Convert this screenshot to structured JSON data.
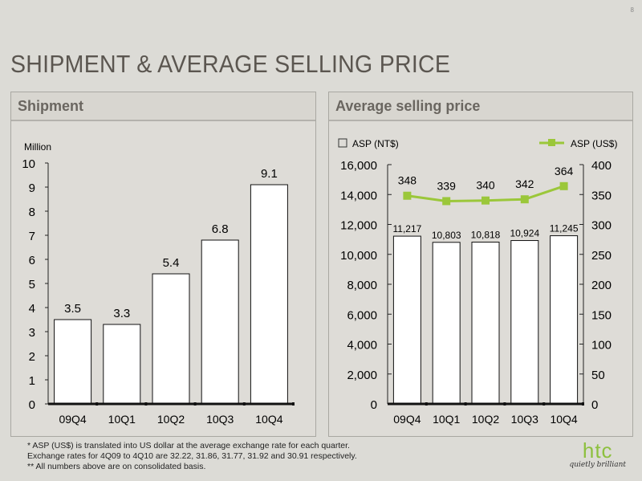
{
  "page_number": "8",
  "title": "SHIPMENT & AVERAGE SELLING PRICE",
  "colors": {
    "line": "#9bc73a",
    "bar_fill": "#ffffff",
    "bar_stroke": "#111111"
  },
  "chart_data": [
    {
      "type": "bar",
      "panel_title": "Shipment",
      "ylabel": "Million",
      "categories": [
        "09Q4",
        "10Q1",
        "10Q2",
        "10Q3",
        "10Q4"
      ],
      "values": [
        3.5,
        3.3,
        5.4,
        6.8,
        9.1
      ],
      "labels": [
        "3.5",
        "3.3",
        "5.4",
        "6.8",
        "9.1"
      ],
      "ylim": [
        0,
        10
      ],
      "yticks": [
        "0",
        "1",
        "2",
        "3",
        "4",
        "5",
        "6",
        "7",
        "8",
        "9",
        "10"
      ],
      "grid": false
    },
    {
      "type": "bar+line",
      "panel_title": "Average selling price",
      "categories": [
        "09Q4",
        "10Q1",
        "10Q2",
        "10Q3",
        "10Q4"
      ],
      "series": [
        {
          "name": "ASP (NT$)",
          "type": "bar",
          "axis": "left",
          "values": [
            11217,
            10803,
            10818,
            10924,
            11245
          ],
          "labels": [
            "11,217",
            "10,803",
            "10,818",
            "10,924",
            "11,245"
          ]
        },
        {
          "name": "ASP (US$)",
          "type": "line",
          "axis": "right",
          "values": [
            348,
            339,
            340,
            342,
            364
          ],
          "labels": [
            "348",
            "339",
            "340",
            "342",
            "364"
          ]
        }
      ],
      "ylim_left": [
        0,
        16000
      ],
      "yticks_left": [
        "0",
        "2,000",
        "4,000",
        "6,000",
        "8,000",
        "10,000",
        "12,000",
        "14,000",
        "16,000"
      ],
      "ylim_right": [
        0,
        400
      ],
      "yticks_right": [
        "0",
        "50",
        "100",
        "150",
        "200",
        "250",
        "300",
        "350",
        "400"
      ],
      "legend": "top",
      "grid": false
    }
  ],
  "notes": [
    "*  ASP (US$) is translated into US dollar at the average exchange rate for each quarter.",
    "    Exchange rates for 4Q09 to 4Q10 are 32.22, 31.86, 31.77, 31.92 and 30.91 respectively.",
    "** All numbers above are on consolidated basis."
  ],
  "logo": {
    "word": "htc",
    "tagline": "quietly brilliant"
  }
}
